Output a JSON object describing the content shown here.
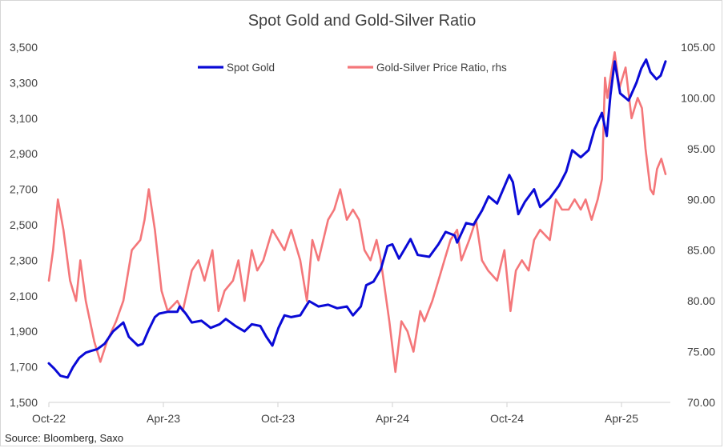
{
  "chart_data": {
    "type": "line",
    "title": "Spot Gold and Gold-Silver Ratio",
    "source": "Source: Bloomberg, Saxo",
    "x_ticks": [
      "Oct-22",
      "Apr-23",
      "Oct-23",
      "Apr-24",
      "Oct-24",
      "Apr-25"
    ],
    "y_left": {
      "ticks": [
        "3,500",
        "3,300",
        "3,100",
        "2,900",
        "2,700",
        "2,500",
        "2,300",
        "2,100",
        "1,900",
        "1,700",
        "1,500"
      ],
      "min": 1500,
      "max": 3500
    },
    "y_right": {
      "ticks": [
        "105.00",
        "100.00",
        "95.00",
        "90.00",
        "85.00",
        "80.00",
        "75.00",
        "70.00"
      ],
      "min": 70,
      "max": 105
    },
    "legend_position": "top",
    "grid": false,
    "series": [
      {
        "name": "Spot Gold",
        "axis": "left",
        "color": "#0a0ad6",
        "points": [
          [
            "2022-10-01",
            1720
          ],
          [
            "2022-10-10",
            1690
          ],
          [
            "2022-10-20",
            1650
          ],
          [
            "2022-11-01",
            1640
          ],
          [
            "2022-11-10",
            1700
          ],
          [
            "2022-11-20",
            1750
          ],
          [
            "2022-12-01",
            1780
          ],
          [
            "2022-12-10",
            1790
          ],
          [
            "2022-12-20",
            1800
          ],
          [
            "2023-01-01",
            1830
          ],
          [
            "2023-01-15",
            1900
          ],
          [
            "2023-02-01",
            1950
          ],
          [
            "2023-02-10",
            1870
          ],
          [
            "2023-02-25",
            1820
          ],
          [
            "2023-03-05",
            1830
          ],
          [
            "2023-03-15",
            1910
          ],
          [
            "2023-03-25",
            1980
          ],
          [
            "2023-04-01",
            2000
          ],
          [
            "2023-04-15",
            2010
          ],
          [
            "2023-05-01",
            2010
          ],
          [
            "2023-05-05",
            2040
          ],
          [
            "2023-05-15",
            2000
          ],
          [
            "2023-05-25",
            1950
          ],
          [
            "2023-06-10",
            1960
          ],
          [
            "2023-06-25",
            1920
          ],
          [
            "2023-07-10",
            1940
          ],
          [
            "2023-07-20",
            1970
          ],
          [
            "2023-08-05",
            1930
          ],
          [
            "2023-08-20",
            1900
          ],
          [
            "2023-09-01",
            1940
          ],
          [
            "2023-09-15",
            1930
          ],
          [
            "2023-09-25",
            1870
          ],
          [
            "2023-10-05",
            1820
          ],
          [
            "2023-10-15",
            1920
          ],
          [
            "2023-10-25",
            1990
          ],
          [
            "2023-11-05",
            1980
          ],
          [
            "2023-11-20",
            1990
          ],
          [
            "2023-12-01",
            2050
          ],
          [
            "2023-12-05",
            2070
          ],
          [
            "2023-12-20",
            2040
          ],
          [
            "2024-01-05",
            2050
          ],
          [
            "2024-01-20",
            2030
          ],
          [
            "2024-02-05",
            2040
          ],
          [
            "2024-02-15",
            1990
          ],
          [
            "2024-02-28",
            2040
          ],
          [
            "2024-03-08",
            2160
          ],
          [
            "2024-03-20",
            2180
          ],
          [
            "2024-04-01",
            2250
          ],
          [
            "2024-04-12",
            2380
          ],
          [
            "2024-04-20",
            2390
          ],
          [
            "2024-05-01",
            2310
          ],
          [
            "2024-05-20",
            2420
          ],
          [
            "2024-06-01",
            2330
          ],
          [
            "2024-06-20",
            2320
          ],
          [
            "2024-07-05",
            2390
          ],
          [
            "2024-07-17",
            2460
          ],
          [
            "2024-08-01",
            2440
          ],
          [
            "2024-08-05",
            2400
          ],
          [
            "2024-08-20",
            2510
          ],
          [
            "2024-09-01",
            2500
          ],
          [
            "2024-09-15",
            2580
          ],
          [
            "2024-09-26",
            2660
          ],
          [
            "2024-10-10",
            2620
          ],
          [
            "2024-10-30",
            2780
          ],
          [
            "2024-11-05",
            2740
          ],
          [
            "2024-11-14",
            2560
          ],
          [
            "2024-11-25",
            2630
          ],
          [
            "2024-12-10",
            2700
          ],
          [
            "2024-12-20",
            2600
          ],
          [
            "2025-01-05",
            2650
          ],
          [
            "2025-01-20",
            2720
          ],
          [
            "2025-02-01",
            2800
          ],
          [
            "2025-02-11",
            2920
          ],
          [
            "2025-02-25",
            2880
          ],
          [
            "2025-03-10",
            2920
          ],
          [
            "2025-03-20",
            3040
          ],
          [
            "2025-04-01",
            3130
          ],
          [
            "2025-04-09",
            3000
          ],
          [
            "2025-04-15",
            3230
          ],
          [
            "2025-04-22",
            3420
          ],
          [
            "2025-05-01",
            3240
          ],
          [
            "2025-05-15",
            3200
          ],
          [
            "2025-05-28",
            3300
          ],
          [
            "2025-06-05",
            3380
          ],
          [
            "2025-06-13",
            3430
          ],
          [
            "2025-06-20",
            3360
          ],
          [
            "2025-06-30",
            3320
          ],
          [
            "2025-07-07",
            3340
          ],
          [
            "2025-07-15",
            3420
          ]
        ]
      },
      {
        "name": "Gold-Silver Price Ratio, rhs",
        "axis": "right",
        "color": "#f4777a",
        "points": [
          [
            "2022-10-01",
            82
          ],
          [
            "2022-10-08",
            85
          ],
          [
            "2022-10-16",
            90
          ],
          [
            "2022-10-25",
            87
          ],
          [
            "2022-11-05",
            82
          ],
          [
            "2022-11-15",
            80
          ],
          [
            "2022-11-22",
            84
          ],
          [
            "2022-12-01",
            80
          ],
          [
            "2022-12-15",
            76
          ],
          [
            "2022-12-25",
            74
          ],
          [
            "2023-01-05",
            76
          ],
          [
            "2023-01-20",
            78
          ],
          [
            "2023-02-01",
            80
          ],
          [
            "2023-02-15",
            85
          ],
          [
            "2023-03-01",
            86
          ],
          [
            "2023-03-08",
            88
          ],
          [
            "2023-03-15",
            91
          ],
          [
            "2023-03-25",
            87
          ],
          [
            "2023-04-05",
            81
          ],
          [
            "2023-04-15",
            79
          ],
          [
            "2023-05-01",
            80
          ],
          [
            "2023-05-10",
            79
          ],
          [
            "2023-05-25",
            83
          ],
          [
            "2023-06-05",
            84
          ],
          [
            "2023-06-15",
            82
          ],
          [
            "2023-06-28",
            85
          ],
          [
            "2023-07-08",
            79
          ],
          [
            "2023-07-18",
            81
          ],
          [
            "2023-08-01",
            82
          ],
          [
            "2023-08-10",
            84
          ],
          [
            "2023-08-20",
            80
          ],
          [
            "2023-09-01",
            85
          ],
          [
            "2023-09-10",
            83
          ],
          [
            "2023-09-20",
            84
          ],
          [
            "2023-10-05",
            87
          ],
          [
            "2023-10-15",
            86
          ],
          [
            "2023-10-25",
            85
          ],
          [
            "2023-11-05",
            87
          ],
          [
            "2023-11-20",
            84
          ],
          [
            "2023-12-01",
            80
          ],
          [
            "2023-12-10",
            86
          ],
          [
            "2023-12-20",
            84
          ],
          [
            "2024-01-05",
            88
          ],
          [
            "2024-01-15",
            89
          ],
          [
            "2024-01-25",
            91
          ],
          [
            "2024-02-05",
            88
          ],
          [
            "2024-02-15",
            89
          ],
          [
            "2024-02-25",
            88
          ],
          [
            "2024-03-05",
            85
          ],
          [
            "2024-03-15",
            84
          ],
          [
            "2024-03-25",
            86
          ],
          [
            "2024-04-01",
            84
          ],
          [
            "2024-04-08",
            81
          ],
          [
            "2024-04-15",
            78
          ],
          [
            "2024-04-25",
            73
          ],
          [
            "2024-05-05",
            78
          ],
          [
            "2024-05-15",
            77
          ],
          [
            "2024-05-25",
            75
          ],
          [
            "2024-06-05",
            79
          ],
          [
            "2024-06-12",
            78
          ],
          [
            "2024-06-25",
            80
          ],
          [
            "2024-07-05",
            82
          ],
          [
            "2024-07-15",
            84
          ],
          [
            "2024-07-25",
            86
          ],
          [
            "2024-08-05",
            87
          ],
          [
            "2024-08-12",
            84
          ],
          [
            "2024-08-25",
            86
          ],
          [
            "2024-09-05",
            88
          ],
          [
            "2024-09-15",
            84
          ],
          [
            "2024-09-25",
            83
          ],
          [
            "2024-10-10",
            82
          ],
          [
            "2024-10-22",
            85
          ],
          [
            "2024-11-01",
            79
          ],
          [
            "2024-11-10",
            83
          ],
          [
            "2024-11-20",
            84
          ],
          [
            "2024-12-01",
            83
          ],
          [
            "2024-12-10",
            86
          ],
          [
            "2024-12-20",
            87
          ],
          [
            "2025-01-05",
            86
          ],
          [
            "2025-01-15",
            90
          ],
          [
            "2025-01-25",
            89
          ],
          [
            "2025-02-05",
            89
          ],
          [
            "2025-02-15",
            90
          ],
          [
            "2025-02-25",
            89
          ],
          [
            "2025-03-05",
            90
          ],
          [
            "2025-03-15",
            88
          ],
          [
            "2025-03-25",
            90
          ],
          [
            "2025-04-01",
            92
          ],
          [
            "2025-04-06",
            102
          ],
          [
            "2025-04-10",
            100
          ],
          [
            "2025-04-15",
            102
          ],
          [
            "2025-04-22",
            104.5
          ],
          [
            "2025-04-30",
            101
          ],
          [
            "2025-05-10",
            103
          ],
          [
            "2025-05-20",
            98
          ],
          [
            "2025-05-30",
            100
          ],
          [
            "2025-06-06",
            99
          ],
          [
            "2025-06-12",
            95
          ],
          [
            "2025-06-20",
            91
          ],
          [
            "2025-06-25",
            90.5
          ],
          [
            "2025-07-01",
            93
          ],
          [
            "2025-07-08",
            94
          ],
          [
            "2025-07-15",
            92.5
          ]
        ]
      }
    ]
  }
}
